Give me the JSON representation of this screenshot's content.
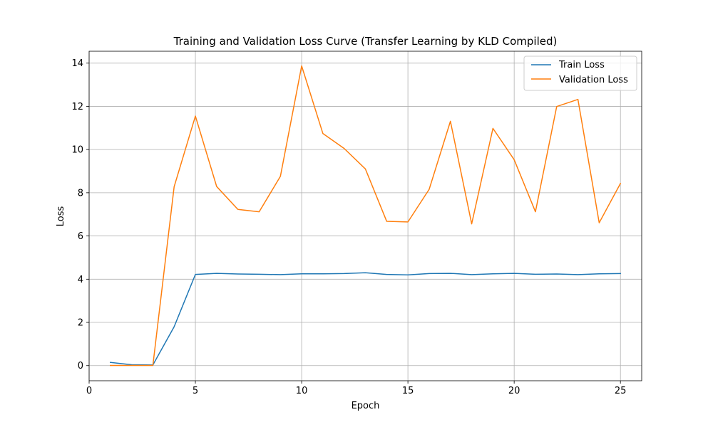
{
  "chart_data": {
    "type": "line",
    "title": "Training and Validation Loss Curve (Transfer Learning by KLD Compiled)",
    "xlabel": "Epoch",
    "ylabel": "Loss",
    "xlim": [
      0,
      26
    ],
    "ylim": [
      -0.7,
      14.55
    ],
    "x_ticks": [
      0,
      5,
      10,
      15,
      20,
      25
    ],
    "y_ticks": [
      0,
      2,
      4,
      6,
      8,
      10,
      12,
      14
    ],
    "grid": true,
    "legend_position": "top-right",
    "x": [
      1,
      2,
      3,
      4,
      5,
      6,
      7,
      8,
      9,
      10,
      11,
      12,
      13,
      14,
      15,
      16,
      17,
      18,
      19,
      20,
      21,
      22,
      23,
      24,
      25
    ],
    "series": [
      {
        "name": "Train Loss",
        "color": "#1f77b4",
        "values": [
          0.15,
          0.04,
          0.03,
          1.8,
          4.22,
          4.27,
          4.24,
          4.23,
          4.21,
          4.25,
          4.25,
          4.26,
          4.3,
          4.22,
          4.2,
          4.26,
          4.27,
          4.21,
          4.25,
          4.27,
          4.23,
          4.24,
          4.21,
          4.25,
          4.26
        ]
      },
      {
        "name": "Validation Loss",
        "color": "#ff7f0e",
        "values": [
          0.01,
          0.01,
          0.01,
          8.28,
          11.55,
          8.29,
          7.23,
          7.12,
          8.76,
          13.87,
          10.74,
          10.05,
          9.1,
          6.68,
          6.65,
          8.16,
          11.31,
          6.56,
          10.98,
          9.53,
          7.12,
          11.99,
          12.32,
          6.61,
          8.43
        ]
      }
    ]
  }
}
